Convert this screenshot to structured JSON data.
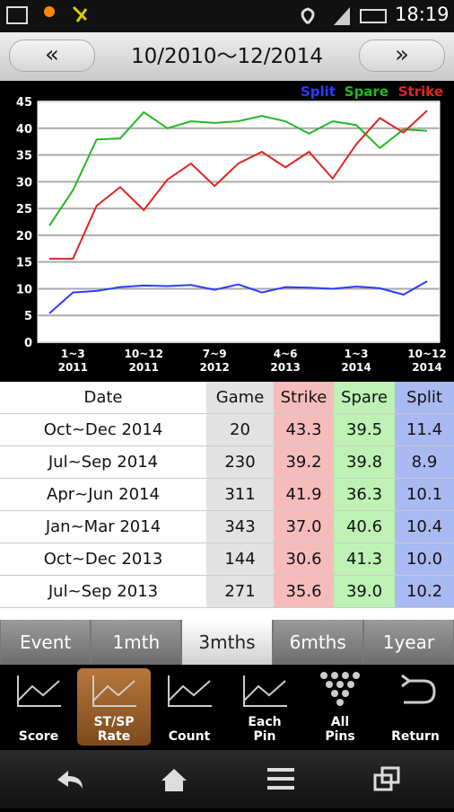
{
  "status_bar": {
    "time": "18:19"
  },
  "header": {
    "prev": "«",
    "title": "10/2010～12/2014",
    "next": "»"
  },
  "chart_data": {
    "type": "line",
    "categories": [
      null,
      "1~3\n2011",
      null,
      null,
      "10~12\n2011",
      null,
      null,
      "7~9\n2012",
      null,
      null,
      "4~6\n2013",
      null,
      null,
      "1~3\n2014",
      null,
      null,
      "10~12\n2014"
    ],
    "series": [
      {
        "name": "Split",
        "color": "#2a3cff",
        "values": [
          5.4,
          9.3,
          9.6,
          10.3,
          10.6,
          10.5,
          10.7,
          9.8,
          10.8,
          9.3,
          10.3,
          10.2,
          10.0,
          10.4,
          10.1,
          8.9,
          11.4
        ]
      },
      {
        "name": "Spare",
        "color": "#22b822",
        "values": [
          21.8,
          28.4,
          37.9,
          38.1,
          43.0,
          40.0,
          41.3,
          41.0,
          41.3,
          42.3,
          41.3,
          39.0,
          41.3,
          40.6,
          36.3,
          39.8,
          39.5
        ]
      },
      {
        "name": "Strike",
        "color": "#e02424",
        "values": [
          15.6,
          15.6,
          25.5,
          29.0,
          24.7,
          30.4,
          33.4,
          29.2,
          33.4,
          35.6,
          32.7,
          35.6,
          30.6,
          37.0,
          41.9,
          39.2,
          43.3
        ]
      }
    ],
    "ylim": [
      0,
      45
    ],
    "yticks": [
      0,
      5,
      10,
      15,
      20,
      25,
      30,
      35,
      40,
      45
    ],
    "grid": true,
    "legend": "top-right"
  },
  "table": {
    "columns": [
      "Date",
      "Game",
      "Strike",
      "Spare",
      "Split"
    ],
    "rows": [
      [
        "Oct~Dec 2014",
        "20",
        "43.3",
        "39.5",
        "11.4"
      ],
      [
        "Jul~Sep 2014",
        "230",
        "39.2",
        "39.8",
        "8.9"
      ],
      [
        "Apr~Jun 2014",
        "311",
        "41.9",
        "36.3",
        "10.1"
      ],
      [
        "Jan~Mar 2014",
        "343",
        "37.0",
        "40.6",
        "10.4"
      ],
      [
        "Oct~Dec 2013",
        "144",
        "30.6",
        "41.3",
        "10.0"
      ],
      [
        "Jul~Sep 2013",
        "271",
        "35.6",
        "39.0",
        "10.2"
      ]
    ]
  },
  "tabs": {
    "items": [
      "Event",
      "1mth",
      "3mths",
      "6mths",
      "1year"
    ],
    "selected": 2
  },
  "toolbar": {
    "items": [
      "Score",
      "ST/SP\nRate",
      "Count",
      "Each\nPin",
      "All\nPins",
      "Return"
    ],
    "selected": 1
  }
}
